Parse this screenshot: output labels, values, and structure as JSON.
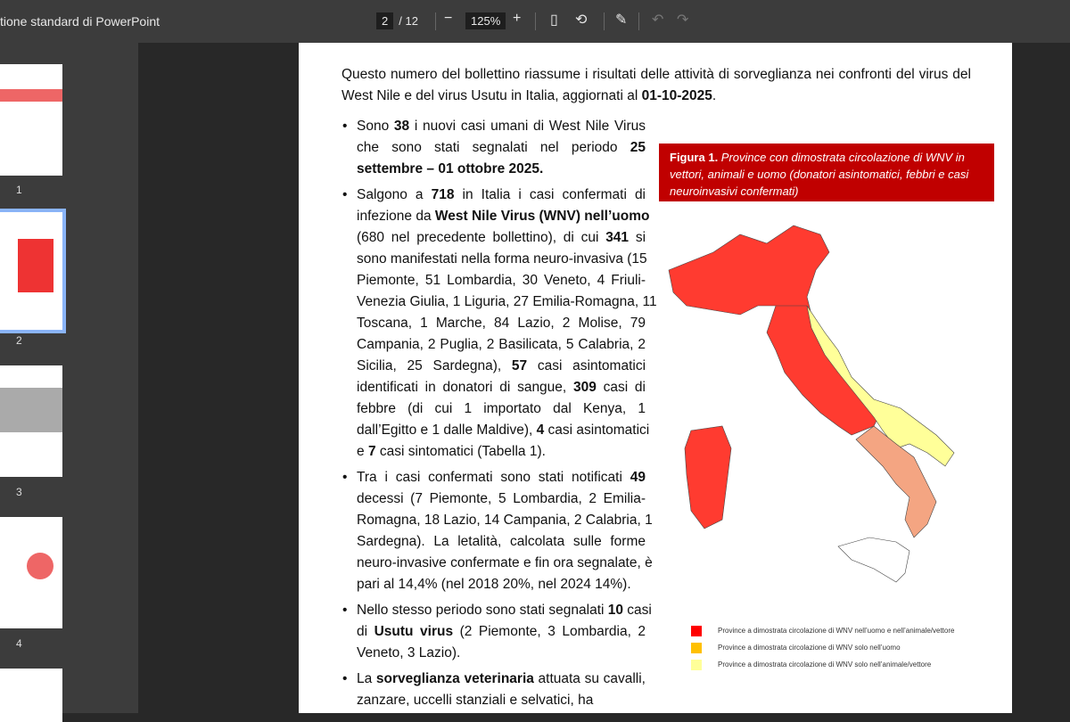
{
  "toolbar": {
    "title": "tione standard di PowerPoint",
    "page_current": "2",
    "page_total": "/ 12",
    "zoom": "125%"
  },
  "thumbnails": [
    {
      "label": "1"
    },
    {
      "label": "2",
      "selected": true
    },
    {
      "label": "3"
    },
    {
      "label": "4"
    }
  ],
  "document": {
    "intro": [
      [
        {
          "t": "Questo numero del bollettino riassume i risultati delle attività di sorveglianza nei confronti del virus del"
        }
      ],
      [
        {
          "t": "West Nile e del virus Usutu in Italia, aggiornati al "
        },
        {
          "t": "01-10-2025",
          "b": 1
        },
        {
          "t": "."
        }
      ]
    ],
    "bullets": [
      [
        [
          {
            "t": "Sono "
          },
          {
            "t": "38",
            "b": 1
          },
          {
            "t": " i nuovi casi umani di West Nile Virus"
          }
        ],
        [
          {
            "t": "che sono stati segnalati nel periodo "
          },
          {
            "t": "25",
            "b": 1
          }
        ],
        [
          {
            "t": "settembre – 01 ottobre 2025.",
            "b": 1
          }
        ]
      ],
      [
        [
          {
            "t": "Salgono a "
          },
          {
            "t": "718",
            "b": 1
          },
          {
            "t": " in Italia i casi confermati di"
          }
        ],
        [
          {
            "t": "infezione da "
          },
          {
            "t": "West Nile Virus (WNV) nell’uomo",
            "b": 1
          }
        ],
        [
          {
            "t": "(680 nel precedente bollettino), di cui "
          },
          {
            "t": "341",
            "b": 1
          },
          {
            "t": " si"
          }
        ],
        [
          {
            "t": "sono manifestati nella forma neuro-invasiva (15"
          }
        ],
        [
          {
            "t": "Piemonte, 51 Lombardia, 30 Veneto, 4 Friuli-"
          }
        ],
        [
          {
            "t": "Venezia Giulia, 1 Liguria, 27 Emilia-Romagna, 11"
          }
        ],
        [
          {
            "t": "Toscana, 1 Marche, 84 Lazio, 2 Molise, 79"
          }
        ],
        [
          {
            "t": "Campania, 2 Puglia, 2 Basilicata, 5 Calabria, 2"
          }
        ],
        [
          {
            "t": "Sicilia, 25 Sardegna), "
          },
          {
            "t": "57",
            "b": 1
          },
          {
            "t": " casi asintomatici"
          }
        ],
        [
          {
            "t": "identificati in donatori di sangue, "
          },
          {
            "t": "309",
            "b": 1
          },
          {
            "t": " casi di"
          }
        ],
        [
          {
            "t": "febbre (di cui 1 importato dal Kenya, 1"
          }
        ],
        [
          {
            "t": "dall’Egitto e 1 dalle Maldive), "
          },
          {
            "t": "4",
            "b": 1
          },
          {
            "t": " casi asintomatici"
          }
        ],
        [
          {
            "t": "e "
          },
          {
            "t": "7",
            "b": 1
          },
          {
            "t": " casi sintomatici (Tabella 1)."
          }
        ]
      ],
      [
        [
          {
            "t": "Tra i casi confermati sono stati notificati "
          },
          {
            "t": "49",
            "b": 1
          }
        ],
        [
          {
            "t": "decessi (7 Piemonte, 5 Lombardia, 2 Emilia-"
          }
        ],
        [
          {
            "t": "Romagna, 18 Lazio, 14 Campania, 2 Calabria, 1"
          }
        ],
        [
          {
            "t": "Sardegna). La letalità, calcolata sulle forme"
          }
        ],
        [
          {
            "t": "neuro-invasive confermate e fin ora segnalate, è"
          }
        ],
        [
          {
            "t": "pari al 14,4% (nel 2018 20%, nel 2024 14%)."
          }
        ]
      ],
      [
        [
          {
            "t": "Nello stesso periodo sono stati segnalati "
          },
          {
            "t": "10",
            "b": 1
          },
          {
            "t": " casi"
          }
        ],
        [
          {
            "t": "di "
          },
          {
            "t": "Usutu virus",
            "b": 1
          },
          {
            "t": " (2 Piemonte, 3 Lombardia, 2"
          }
        ],
        [
          {
            "t": "Veneto, 3 Lazio)."
          }
        ]
      ],
      [
        [
          {
            "t": "La "
          },
          {
            "t": "sorveglianza veterinaria",
            "b": 1
          },
          {
            "t": " attuata su cavalli,"
          }
        ],
        [
          {
            "t": "zanzare, uccelli stanziali e selvatici, ha"
          }
        ]
      ]
    ],
    "figure": {
      "label": "Figura 1.",
      "caption": " Province con dimostrata circolazione di WNV in vettori, animali e uomo (donatori asintomatici, febbri e casi neuroinvasivi confermati)"
    },
    "legend": [
      {
        "color": "#ff0000",
        "label": "Province a dimostrata circolazione di WNV nell’uomo e nell’animale/vettore"
      },
      {
        "color": "#ffc000",
        "label": "Province a dimostrata circolazione di WNV solo nell’uomo"
      },
      {
        "color": "#ffff99",
        "label": "Province a dimostrata circolazione di WNV solo nell’animale/vettore"
      }
    ]
  }
}
